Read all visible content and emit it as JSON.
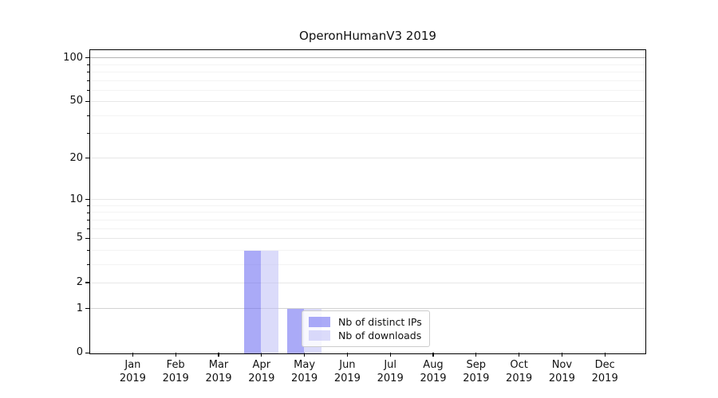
{
  "chart_data": {
    "type": "bar",
    "title": "OperonHumanV3 2019",
    "categories": [
      {
        "month": "Jan",
        "year": "2019"
      },
      {
        "month": "Feb",
        "year": "2019"
      },
      {
        "month": "Mar",
        "year": "2019"
      },
      {
        "month": "Apr",
        "year": "2019"
      },
      {
        "month": "May",
        "year": "2019"
      },
      {
        "month": "Jun",
        "year": "2019"
      },
      {
        "month": "Jul",
        "year": "2019"
      },
      {
        "month": "Aug",
        "year": "2019"
      },
      {
        "month": "Sep",
        "year": "2019"
      },
      {
        "month": "Oct",
        "year": "2019"
      },
      {
        "month": "Nov",
        "year": "2019"
      },
      {
        "month": "Dec",
        "year": "2019"
      }
    ],
    "series": [
      {
        "name": "Nb of distinct IPs",
        "color": "rgba(101,101,240,0.55)",
        "values": [
          0,
          0,
          0,
          4,
          1,
          0,
          0,
          0,
          0,
          0,
          0,
          0
        ]
      },
      {
        "name": "Nb of downloads",
        "color": "rgba(189,189,246,0.55)",
        "values": [
          0,
          0,
          0,
          4,
          1,
          0,
          0,
          0,
          0,
          0,
          0,
          0
        ]
      }
    ],
    "yscale": "log1p",
    "ylim": [
      0,
      113
    ],
    "yticks": [
      {
        "value": 0,
        "label": "0"
      },
      {
        "value": 1,
        "label": "1"
      },
      {
        "value": 2,
        "label": "2"
      },
      {
        "value": 5,
        "label": "5"
      },
      {
        "value": 10,
        "label": "10"
      },
      {
        "value": 20,
        "label": "20"
      },
      {
        "value": 50,
        "label": "50"
      },
      {
        "value": 100,
        "label": "100"
      }
    ],
    "minor_gridline_values": [
      3,
      4,
      6,
      7,
      8,
      9,
      30,
      40,
      60,
      70,
      80,
      90
    ],
    "grid_colors": {
      "top": "#b3b3b3",
      "unit": "#d3d3d3",
      "major": "#e7e7e7",
      "minor": "#f3f3f3"
    },
    "axis_color": "#000000",
    "legend_position": "lower center-right"
  }
}
